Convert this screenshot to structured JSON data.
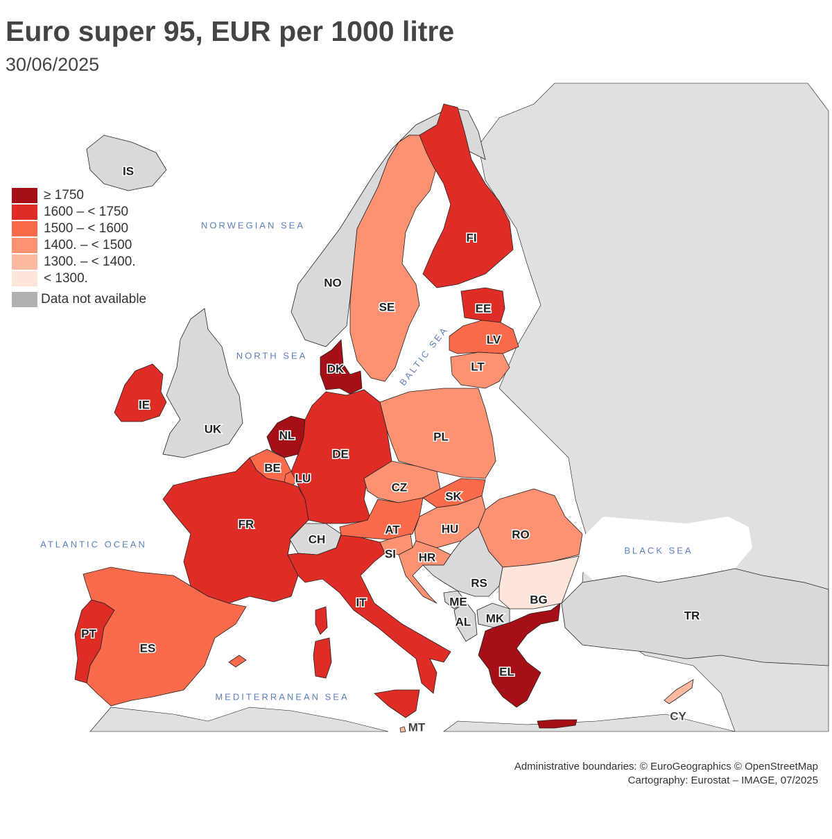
{
  "title": "Euro super 95, EUR per 1000 litre",
  "subtitle": "30/06/2025",
  "legend": [
    {
      "label": "≥ 1750",
      "color": "#a50f15"
    },
    {
      "label": "1600 – < 1750",
      "color": "#de2d26"
    },
    {
      "label": "1500 – < 1600",
      "color": "#fb6a4a"
    },
    {
      "label": "1400. – < 1500",
      "color": "#fc9272"
    },
    {
      "label": "1300. – < 1400.",
      "color": "#fcbba1"
    },
    {
      "label": "< 1300.",
      "color": "#fee5d9"
    },
    {
      "label": "Data not available",
      "color": "#b0b0b0"
    }
  ],
  "seas": {
    "norwegian": "NORWEGIAN SEA",
    "north": "NORTH SEA",
    "baltic": "BALTIC SEA",
    "atlantic": "ATLANTIC OCEAN",
    "black": "BLACK SEA",
    "mediterranean": "MEDITERRANEAN SEA"
  },
  "countries": {
    "IS": {
      "label": "IS",
      "cls": null
    },
    "NO": {
      "label": "NO",
      "cls": null
    },
    "SE": {
      "label": "SE",
      "cls": "1400. – < 1500"
    },
    "FI": {
      "label": "FI",
      "cls": "1600 – < 1750"
    },
    "EE": {
      "label": "EE",
      "cls": "1600 – < 1750"
    },
    "LV": {
      "label": "LV",
      "cls": "1500 – < 1600"
    },
    "LT": {
      "label": "LT",
      "cls": "1400. – < 1500"
    },
    "DK": {
      "label": "DK",
      "cls": "≥ 1750"
    },
    "IE": {
      "label": "IE",
      "cls": "1600 – < 1750"
    },
    "UK": {
      "label": "UK",
      "cls": null
    },
    "NL": {
      "label": "NL",
      "cls": "≥ 1750"
    },
    "BE": {
      "label": "BE",
      "cls": "1500 – < 1600"
    },
    "LU": {
      "label": "LU",
      "cls": "1500 – < 1600"
    },
    "DE": {
      "label": "DE",
      "cls": "1600 – < 1750"
    },
    "PL": {
      "label": "PL",
      "cls": "1400. – < 1500"
    },
    "CZ": {
      "label": "CZ",
      "cls": "1400. – < 1500"
    },
    "SK": {
      "label": "SK",
      "cls": "1500 – < 1600"
    },
    "AT": {
      "label": "AT",
      "cls": "1500 – < 1600"
    },
    "HU": {
      "label": "HU",
      "cls": "1400. – < 1500"
    },
    "RO": {
      "label": "RO",
      "cls": "1400. – < 1500"
    },
    "FR": {
      "label": "FR",
      "cls": "1600 – < 1750"
    },
    "CH": {
      "label": "CH",
      "cls": null
    },
    "SI": {
      "label": "SI",
      "cls": "1400. – < 1500"
    },
    "HR": {
      "label": "HR",
      "cls": "1400. – < 1500"
    },
    "RS": {
      "label": "RS",
      "cls": null
    },
    "ME": {
      "label": "ME",
      "cls": null
    },
    "AL": {
      "label": "AL",
      "cls": null
    },
    "MK": {
      "label": "MK",
      "cls": null
    },
    "BG": {
      "label": "BG",
      "cls": "< 1300."
    },
    "TR": {
      "label": "TR",
      "cls": null
    },
    "IT": {
      "label": "IT",
      "cls": "1600 – < 1750"
    },
    "EL": {
      "label": "EL",
      "cls": "≥ 1750"
    },
    "PT": {
      "label": "PT",
      "cls": "1600 – < 1750"
    },
    "ES": {
      "label": "ES",
      "cls": "1500 – < 1600"
    },
    "MT": {
      "label": "MT",
      "cls": "1300. – < 1400."
    },
    "CY": {
      "label": "CY",
      "cls": "1300. – < 1400."
    }
  },
  "credits": {
    "line1": "Administrative boundaries: © EuroGeographics © OpenStreetMap",
    "line2": "Cartography: Eurostat – IMAGE, 07/2025"
  }
}
